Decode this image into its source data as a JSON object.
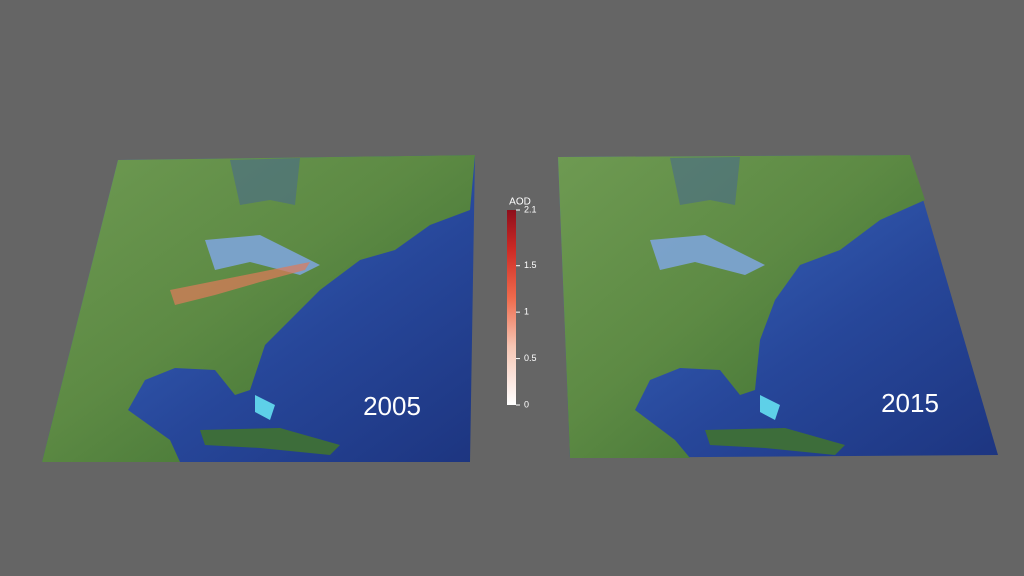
{
  "panels": [
    {
      "label": "2005"
    },
    {
      "label": "2015"
    }
  ],
  "colorbar": {
    "title": "AOD",
    "lim": [
      0,
      2.1
    ],
    "ticks": [
      0,
      0.5,
      1,
      1.5,
      2.1
    ]
  }
}
